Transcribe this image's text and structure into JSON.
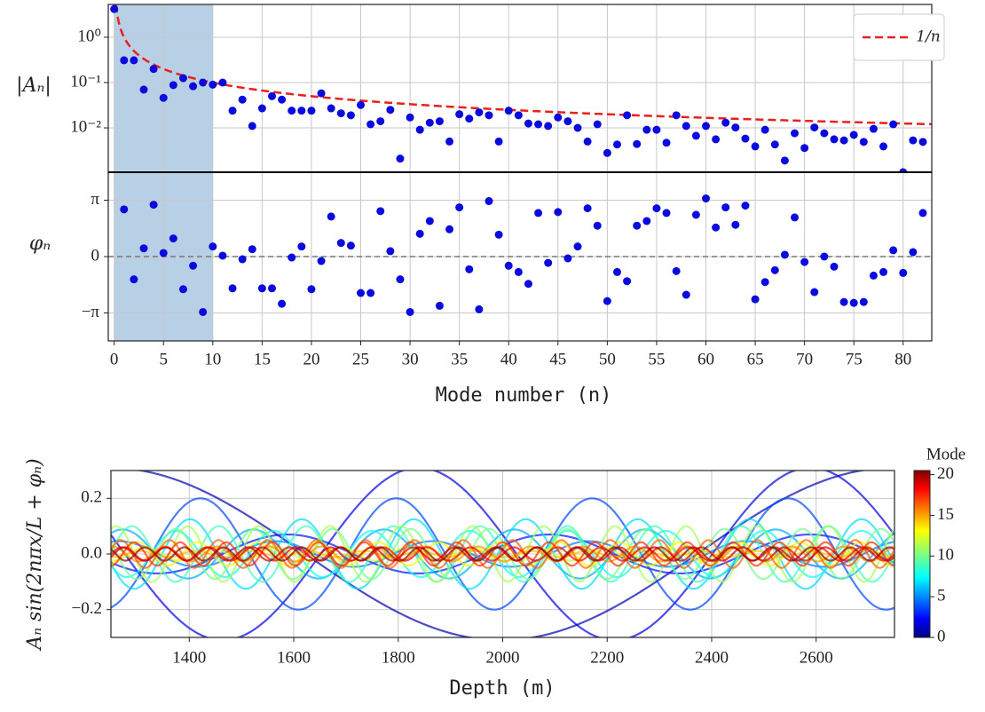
{
  "chart_data": [
    {
      "type": "scatter",
      "ylabel": "|Aₙ|",
      "log_y": true,
      "grid": true,
      "color": "#0a0adf",
      "x": [
        0,
        1,
        2,
        3,
        4,
        5,
        6,
        7,
        8,
        9,
        10,
        11,
        12,
        13,
        14,
        15,
        16,
        17,
        18,
        19,
        20,
        21,
        22,
        23,
        24,
        25,
        26,
        27,
        28,
        29,
        30,
        31,
        32,
        33,
        34,
        35,
        36,
        37,
        38,
        39,
        40,
        41,
        42,
        43,
        44,
        45,
        46,
        47,
        48,
        49,
        50,
        51,
        52,
        53,
        54,
        55,
        56,
        57,
        58,
        59,
        60,
        61,
        62,
        63,
        64,
        65,
        66,
        67,
        68,
        69,
        70,
        71,
        72,
        73,
        74,
        75,
        76,
        77,
        78,
        79,
        80,
        81,
        82
      ],
      "values": [
        4.2,
        0.31,
        0.31,
        0.07,
        0.2,
        0.046,
        0.088,
        0.125,
        0.083,
        0.1,
        0.09,
        0.1,
        0.024,
        0.042,
        0.011,
        0.027,
        0.05,
        0.042,
        0.024,
        0.024,
        0.024,
        0.058,
        0.027,
        0.021,
        0.019,
        0.032,
        0.012,
        0.014,
        0.025,
        0.0021,
        0.017,
        0.0091,
        0.013,
        0.014,
        0.005,
        0.02,
        0.016,
        0.022,
        0.019,
        0.005,
        0.024,
        0.019,
        0.0125,
        0.012,
        0.011,
        0.017,
        0.014,
        0.01,
        0.005,
        0.012,
        0.0028,
        0.0043,
        0.019,
        0.0044,
        0.0091,
        0.0091,
        0.0047,
        0.019,
        0.011,
        0.0067,
        0.011,
        0.0056,
        0.013,
        0.0102,
        0.0058,
        0.0039,
        0.0091,
        0.0043,
        0.0019,
        0.0076,
        0.0036,
        0.0102,
        0.0076,
        0.0056,
        0.0053,
        0.007,
        0.0049,
        0.0095,
        0.0039,
        0.012,
        0.00105,
        0.0053,
        0.0049
      ],
      "xlim": [
        -0.6,
        82.9
      ],
      "xticks": [
        0,
        5,
        10,
        15,
        20,
        25,
        30,
        35,
        40,
        45,
        50,
        55,
        60,
        65,
        70,
        75,
        80
      ],
      "ylim": [
        0.00105,
        5.3
      ],
      "yticks": [
        {
          "value": 1,
          "label": "10⁰"
        },
        {
          "value": 0.1,
          "label": "10⁻¹"
        },
        {
          "value": 0.01,
          "label": "10⁻²"
        }
      ],
      "highlight": [
        0,
        10
      ],
      "highlight_color": "#b8d0e6",
      "reference_line": {
        "label": "1/n",
        "color": "#e8211e"
      },
      "legend": "upper right"
    },
    {
      "type": "scatter",
      "ylabel": "φₙ",
      "xlabel": "Mode number (n)",
      "grid": true,
      "color": "#0a0adf",
      "x": [
        0,
        1,
        2,
        3,
        4,
        5,
        6,
        7,
        8,
        9,
        10,
        11,
        12,
        13,
        14,
        15,
        16,
        17,
        18,
        19,
        20,
        21,
        22,
        23,
        24,
        25,
        26,
        27,
        28,
        29,
        30,
        31,
        32,
        33,
        34,
        35,
        36,
        37,
        38,
        39,
        40,
        41,
        42,
        43,
        44,
        45,
        46,
        47,
        48,
        49,
        50,
        51,
        52,
        53,
        54,
        55,
        56,
        57,
        58,
        59,
        60,
        61,
        62,
        63,
        64,
        65,
        66,
        67,
        68,
        69,
        70,
        71,
        72,
        73,
        74,
        75,
        76,
        77,
        78,
        79,
        80,
        81,
        82
      ],
      "values": [
        null,
        2.63,
        -1.27,
        0.46,
        2.89,
        0.2,
        1.01,
        -1.82,
        -0.51,
        -3.09,
        0.56,
        0.05,
        -1.77,
        -0.15,
        0.41,
        -1.77,
        -1.77,
        -2.63,
        -0.05,
        0.56,
        -1.82,
        -0.25,
        2.23,
        0.76,
        0.61,
        -2.03,
        -2.03,
        2.53,
        0.3,
        -1.27,
        -3.09,
        1.27,
        1.98,
        -2.74,
        1.52,
        2.74,
        -0.71,
        -2.94,
        3.09,
        1.22,
        -0.51,
        -0.86,
        -1.52,
        2.43,
        -0.35,
        2.48,
        -0.1,
        0.56,
        2.69,
        1.72,
        -2.48,
        -0.86,
        -1.37,
        1.72,
        1.98,
        2.69,
        2.43,
        -0.81,
        -2.13,
        2.33,
        3.24,
        1.62,
        2.74,
        1.77,
        2.84,
        -2.38,
        -1.42,
        -0.76,
        0.1,
        2.18,
        -0.3,
        -1.98,
        0,
        -0.56,
        -2.53,
        -2.58,
        -2.53,
        -1.06,
        -0.86,
        0.35,
        -0.91,
        0.25,
        2.43
      ],
      "xlim": [
        -0.6,
        82.9
      ],
      "xticks": [
        0,
        5,
        10,
        15,
        20,
        25,
        30,
        35,
        40,
        45,
        50,
        55,
        60,
        65,
        70,
        75,
        80
      ],
      "ylim": [
        -4.7,
        4.7
      ],
      "yticks": [
        {
          "value": 3.14159,
          "label": "π"
        },
        0,
        {
          "value": -3.14159,
          "label": "−π"
        }
      ],
      "zero_line": true
    },
    {
      "type": "line",
      "xlabel": "Depth (m)",
      "ylabel": "Aₙ sin(2nπx/L + φₙ)",
      "grid": true,
      "modes": [
        1,
        2,
        3,
        4,
        5,
        6,
        7,
        8,
        9,
        10,
        11,
        12,
        13,
        14,
        15,
        16,
        17,
        18,
        19,
        20
      ],
      "xlim": [
        1250,
        2750
      ],
      "xticks": [
        1400,
        1600,
        1800,
        2000,
        2200,
        2400,
        2600
      ],
      "ylim": [
        -0.3,
        0.3
      ],
      "yticks": [
        {
          "value": -0.2,
          "label": "−0.2"
        },
        {
          "value": 0,
          "label": "0.0"
        },
        0.2
      ],
      "colorbar": {
        "label": "Mode",
        "colormap": "jet",
        "lim": [
          0,
          20.5
        ],
        "ticks": [
          0,
          5,
          10,
          15,
          20
        ]
      }
    }
  ]
}
